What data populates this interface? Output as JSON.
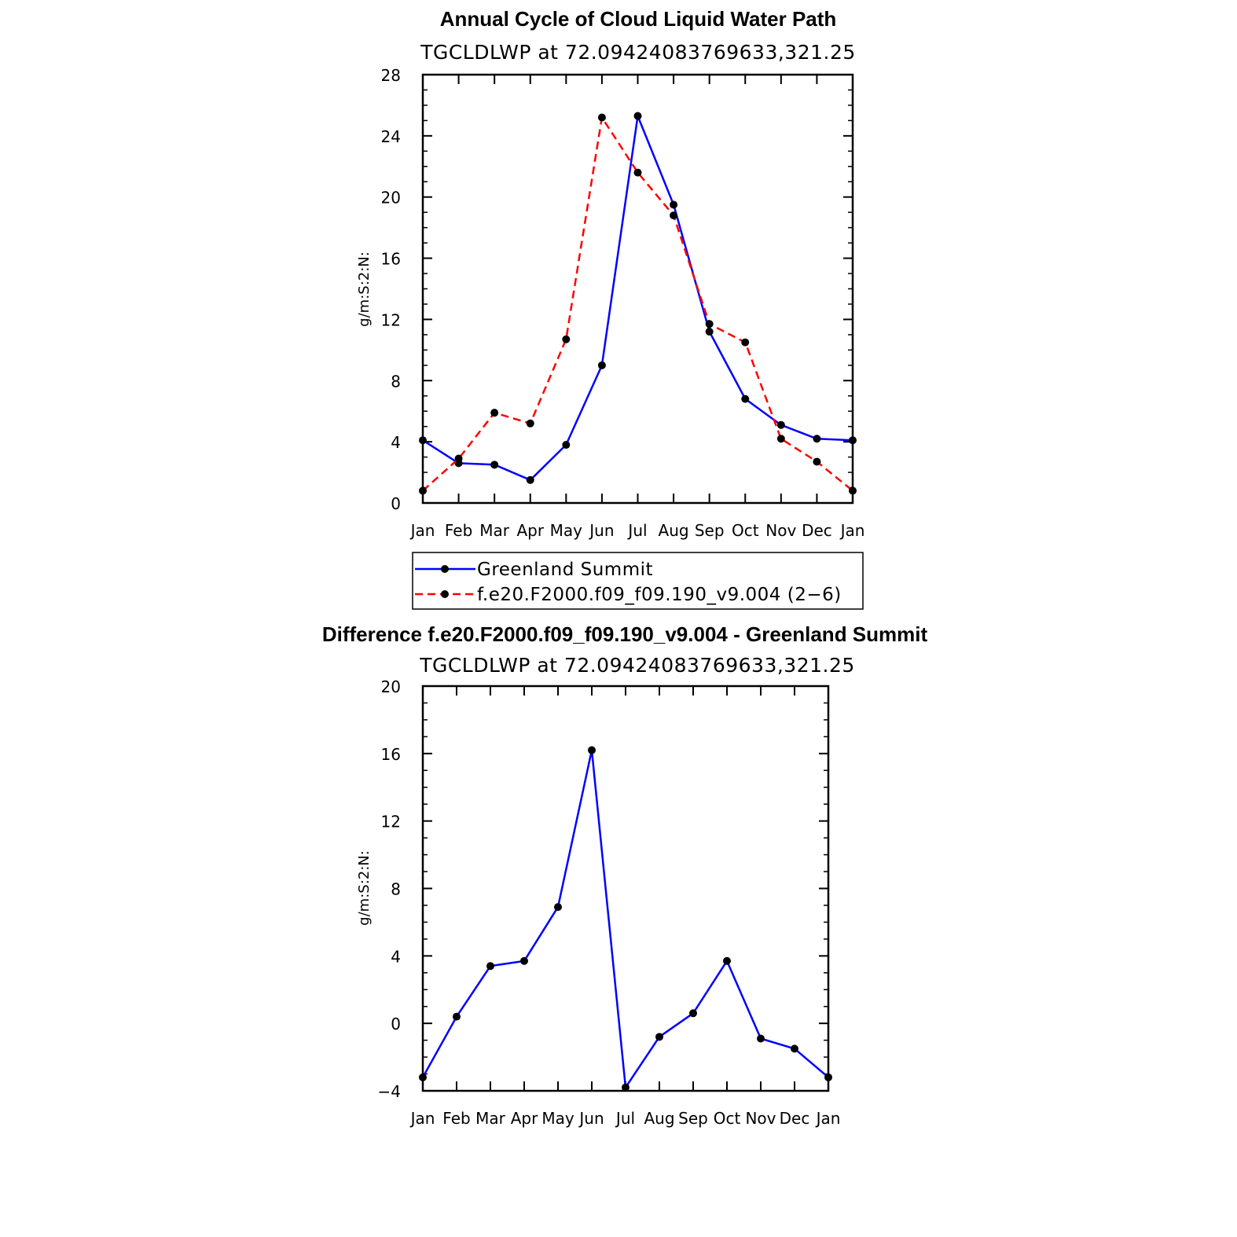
{
  "chart_data": [
    {
      "type": "line",
      "title": "Annual Cycle of Cloud Liquid Water Path",
      "subtitle": "TGCLDLWP at 72.09424083769633,321.25",
      "ylabel": "g/m:S:2:N:",
      "categories": [
        "Jan",
        "Feb",
        "Mar",
        "Apr",
        "May",
        "Jun",
        "Jul",
        "Aug",
        "Sep",
        "Oct",
        "Nov",
        "Dec",
        "Jan"
      ],
      "ylim": [
        0,
        28
      ],
      "yticks": [
        "0",
        "4",
        "8",
        "12",
        "16",
        "20",
        "24",
        "28"
      ],
      "legend_position": "below",
      "series": [
        {
          "name": "Greenland Summit",
          "color": "#0000ff",
          "style": "solid",
          "values": [
            4.1,
            2.6,
            2.5,
            1.5,
            3.8,
            9.0,
            25.3,
            19.5,
            11.2,
            6.8,
            5.1,
            4.2,
            4.1
          ]
        },
        {
          "name": "f.e20.F2000.f09_f09.190_v9.004 (2−6)",
          "color": "#ff0000",
          "style": "dashed",
          "values": [
            0.8,
            2.9,
            5.9,
            5.2,
            10.7,
            25.2,
            21.6,
            18.8,
            11.7,
            10.5,
            4.2,
            2.7,
            0.8
          ]
        }
      ]
    },
    {
      "type": "line",
      "title": "Difference f.e20.F2000.f09_f09.190_v9.004 - Greenland Summit",
      "subtitle": "TGCLDLWP at 72.09424083769633,321.25",
      "ylabel": "g/m:S:2:N:",
      "categories": [
        "Jan",
        "Feb",
        "Mar",
        "Apr",
        "May",
        "Jun",
        "Jul",
        "Aug",
        "Sep",
        "Oct",
        "Nov",
        "Dec",
        "Jan"
      ],
      "ylim": [
        -4,
        20
      ],
      "yticks": [
        "−4",
        "0",
        "4",
        "8",
        "12",
        "16",
        "20"
      ],
      "series": [
        {
          "color": "#0000ff",
          "style": "solid",
          "values": [
            -3.2,
            0.4,
            3.4,
            3.7,
            6.9,
            16.2,
            -3.8,
            -0.8,
            0.6,
            3.7,
            -0.9,
            -1.5,
            -3.2
          ]
        }
      ]
    }
  ]
}
